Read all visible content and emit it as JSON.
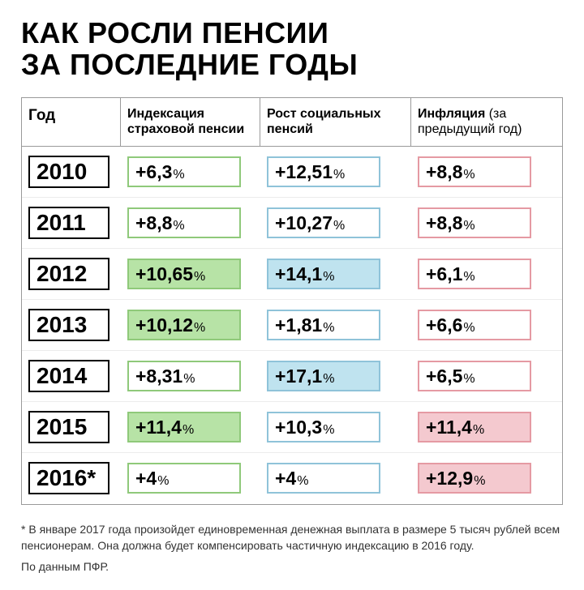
{
  "title_line1": "КАК РОСЛИ ПЕНСИИ",
  "title_line2": "ЗА ПОСЛЕДНИЕ ГОДЫ",
  "columns": {
    "c0": "Год",
    "c1": "Индексация страховой пенсии",
    "c2": "Рост социальных пенсий",
    "c3_bold": "Инфляция",
    "c3_rest": " (за предыдущий год)"
  },
  "palette": {
    "green_border": "#8fc97a",
    "green_fill": "#b7e3a6",
    "blue_border": "#8fc3d9",
    "blue_fill": "#bfe3ef",
    "red_border": "#e59aa3",
    "red_fill": "#f4c9cf",
    "white_fill": "#ffffff"
  },
  "pct_label": "%",
  "rows": [
    {
      "year": "2010",
      "c1": "+6,3",
      "c1_hl": false,
      "c2": "+12,51",
      "c2_hl": false,
      "c3": "+8,8",
      "c3_hl": false
    },
    {
      "year": "2011",
      "c1": "+8,8",
      "c1_hl": false,
      "c2": "+10,27",
      "c2_hl": false,
      "c3": "+8,8",
      "c3_hl": false
    },
    {
      "year": "2012",
      "c1": "+10,65",
      "c1_hl": true,
      "c2": "+14,1",
      "c2_hl": true,
      "c3": "+6,1",
      "c3_hl": false
    },
    {
      "year": "2013",
      "c1": "+10,12",
      "c1_hl": true,
      "c2": "+1,81",
      "c2_hl": false,
      "c3": "+6,6",
      "c3_hl": false
    },
    {
      "year": "2014",
      "c1": "+8,31",
      "c1_hl": false,
      "c2": "+17,1",
      "c2_hl": true,
      "c3": "+6,5",
      "c3_hl": false
    },
    {
      "year": "2015",
      "c1": "+11,4",
      "c1_hl": true,
      "c2": "+10,3",
      "c2_hl": false,
      "c3": "+11,4",
      "c3_hl": true
    },
    {
      "year": "2016*",
      "c1": "+4",
      "c1_hl": false,
      "c2": "+4",
      "c2_hl": false,
      "c3": "+12,9",
      "c3_hl": true
    }
  ],
  "footnote": "* В январе 2017 года произойдет единовременная денежная выплата в размере 5 тысяч рублей всем пенсионерам. Она должна будет компенсировать частичную индексацию в 2016 году.",
  "source": "По данным ПФР."
}
